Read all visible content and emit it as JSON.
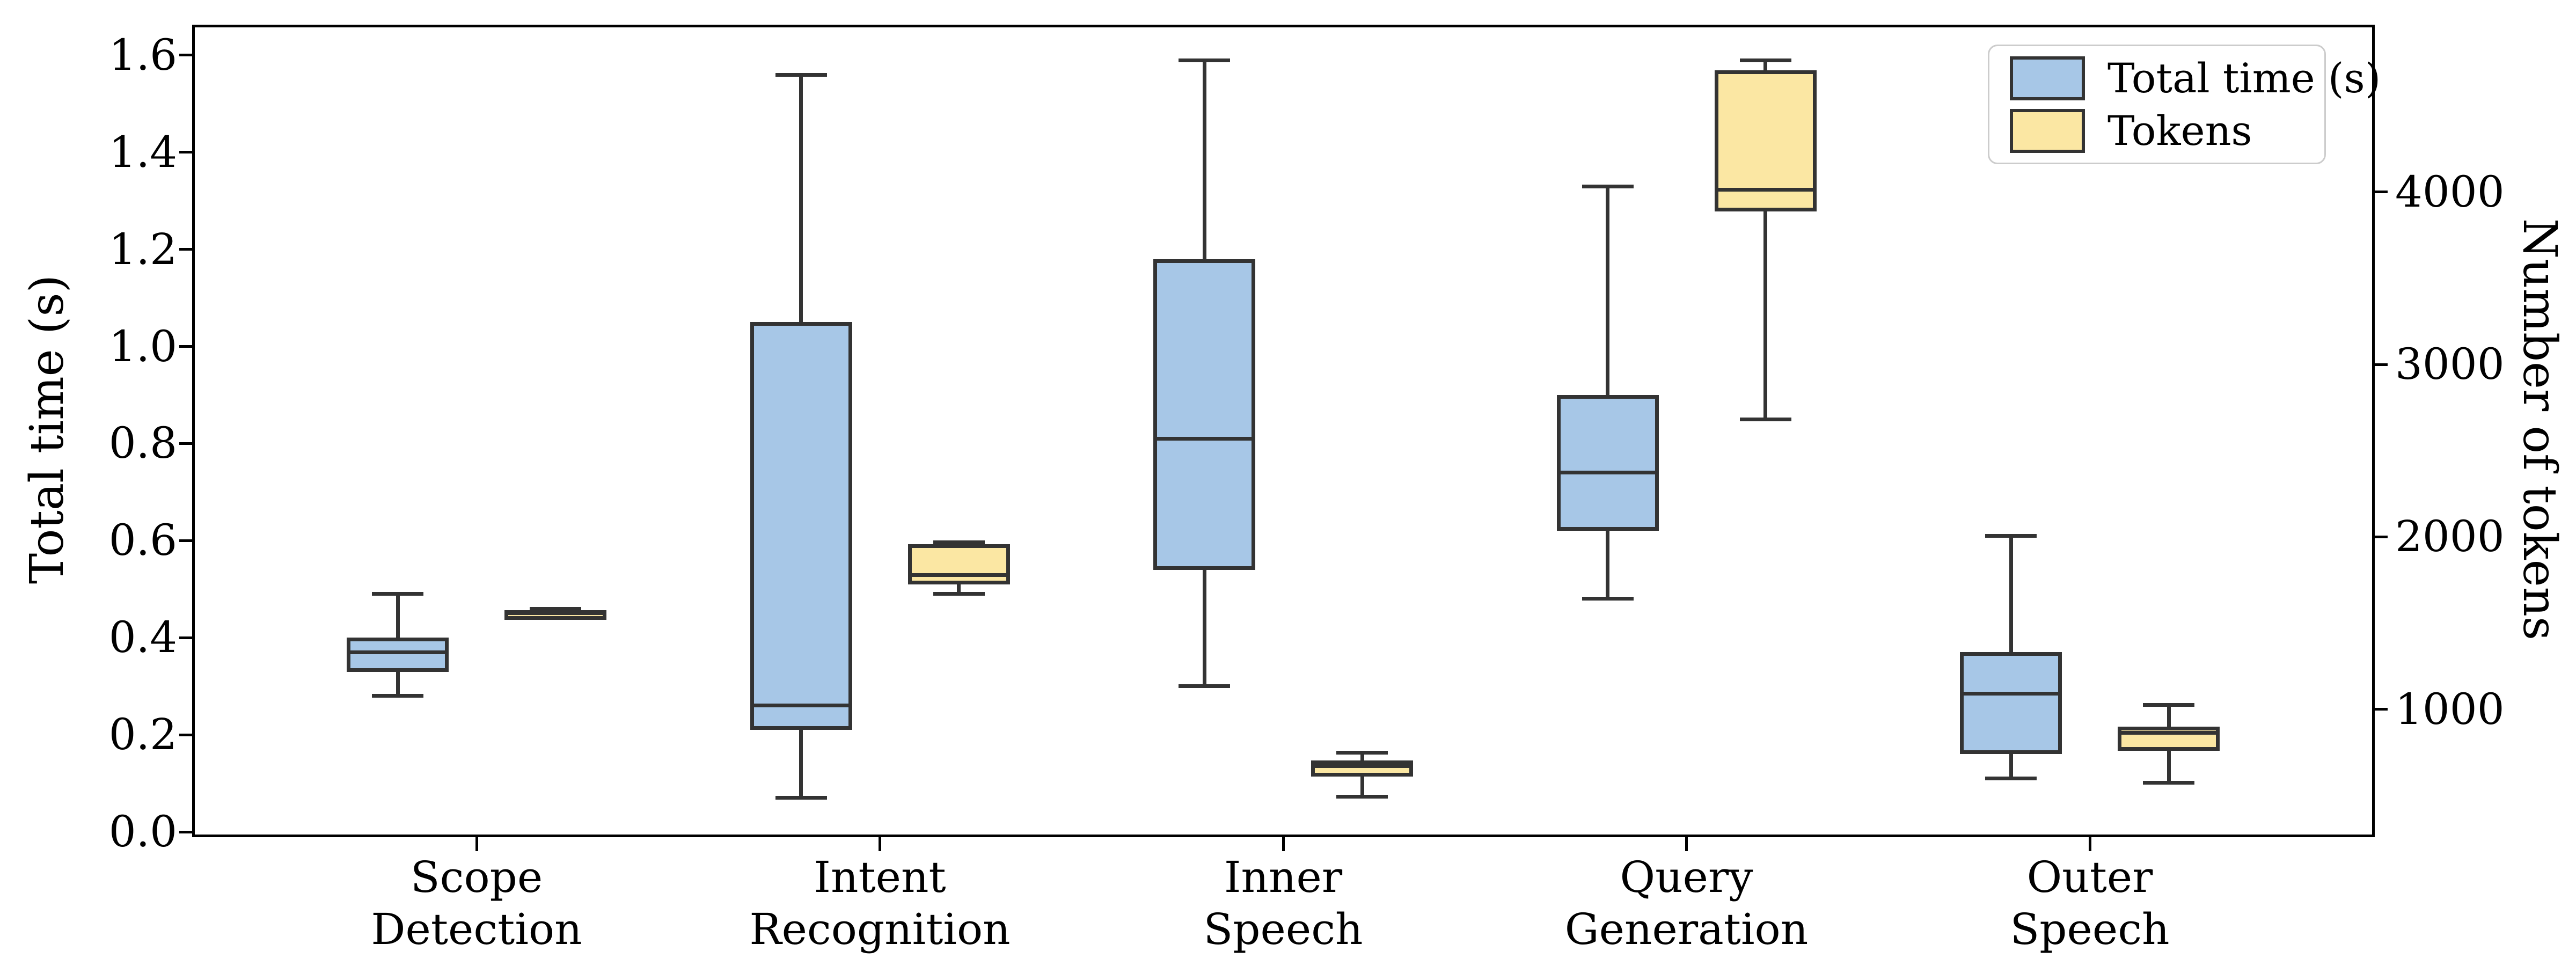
{
  "chart_data": {
    "type": "boxplot",
    "title": "",
    "categories": [
      {
        "line1": "Scope",
        "line2": "Detection"
      },
      {
        "line1": "Intent",
        "line2": "Recognition"
      },
      {
        "line1": "Inner",
        "line2": "Speech"
      },
      {
        "line1": "Query",
        "line2": "Generation"
      },
      {
        "line1": "Outer",
        "line2": "Speech"
      }
    ],
    "left_axis": {
      "label": "Total time (s)",
      "min": 0.0,
      "max": 1.663,
      "ticks": [
        {
          "label": "0.0",
          "value": 0.0
        },
        {
          "label": "0.2",
          "value": 0.2
        },
        {
          "label": "0.4",
          "value": 0.4
        },
        {
          "label": "0.6",
          "value": 0.6
        },
        {
          "label": "0.8",
          "value": 0.8
        },
        {
          "label": "1.0",
          "value": 1.0
        },
        {
          "label": "1.2",
          "value": 1.2
        },
        {
          "label": "1.4",
          "value": 1.4
        },
        {
          "label": "1.6",
          "value": 1.6
        }
      ]
    },
    "right_axis": {
      "label": "Number of tokens",
      "min": 290,
      "max": 4970,
      "ticks": [
        {
          "label": "1000",
          "value": 1000
        },
        {
          "label": "2000",
          "value": 2000
        },
        {
          "label": "3000",
          "value": 3000
        },
        {
          "label": "4000",
          "value": 4000
        }
      ]
    },
    "legend": {
      "position": "upper right"
    },
    "series": [
      {
        "name": "Total time (s)",
        "axis": "left",
        "fill": "#a7c7e7",
        "boxes": [
          {
            "whislo": 0.28,
            "q1": 0.33,
            "med": 0.37,
            "q3": 0.4,
            "whishi": 0.49
          },
          {
            "whislo": 0.07,
            "q1": 0.21,
            "med": 0.26,
            "q3": 1.05,
            "whishi": 1.56
          },
          {
            "whislo": 0.3,
            "q1": 0.54,
            "med": 0.81,
            "q3": 1.18,
            "whishi": 1.59
          },
          {
            "whislo": 0.48,
            "q1": 0.62,
            "med": 0.74,
            "q3": 0.9,
            "whishi": 1.33
          },
          {
            "whislo": 0.11,
            "q1": 0.16,
            "med": 0.285,
            "q3": 0.37,
            "whishi": 0.61
          }
        ]
      },
      {
        "name": "Tokens",
        "axis": "right",
        "fill": "#fbe7a3",
        "boxes": [
          {
            "whislo": 1530,
            "q1": 1540,
            "med": 1557,
            "q3": 1575,
            "whishi": 1582
          },
          {
            "whislo": 1670,
            "q1": 1723,
            "med": 1779,
            "q3": 1959,
            "whishi": 1969
          },
          {
            "whislo": 495,
            "q1": 610,
            "med": 670,
            "q3": 705,
            "whishi": 750
          },
          {
            "whislo": 2680,
            "q1": 3888,
            "med": 4013,
            "q3": 4707,
            "whishi": 4763
          },
          {
            "whislo": 575,
            "q1": 760,
            "med": 865,
            "q3": 900,
            "whishi": 1025
          }
        ]
      }
    ],
    "colors": {
      "box_edge": "#333333",
      "spine": "#000000",
      "blue_fill": "#a7c7e7",
      "yellow_fill": "#fbe7a3",
      "legend_border": "#cccccc",
      "background": "#ffffff"
    },
    "grid": "off"
  }
}
